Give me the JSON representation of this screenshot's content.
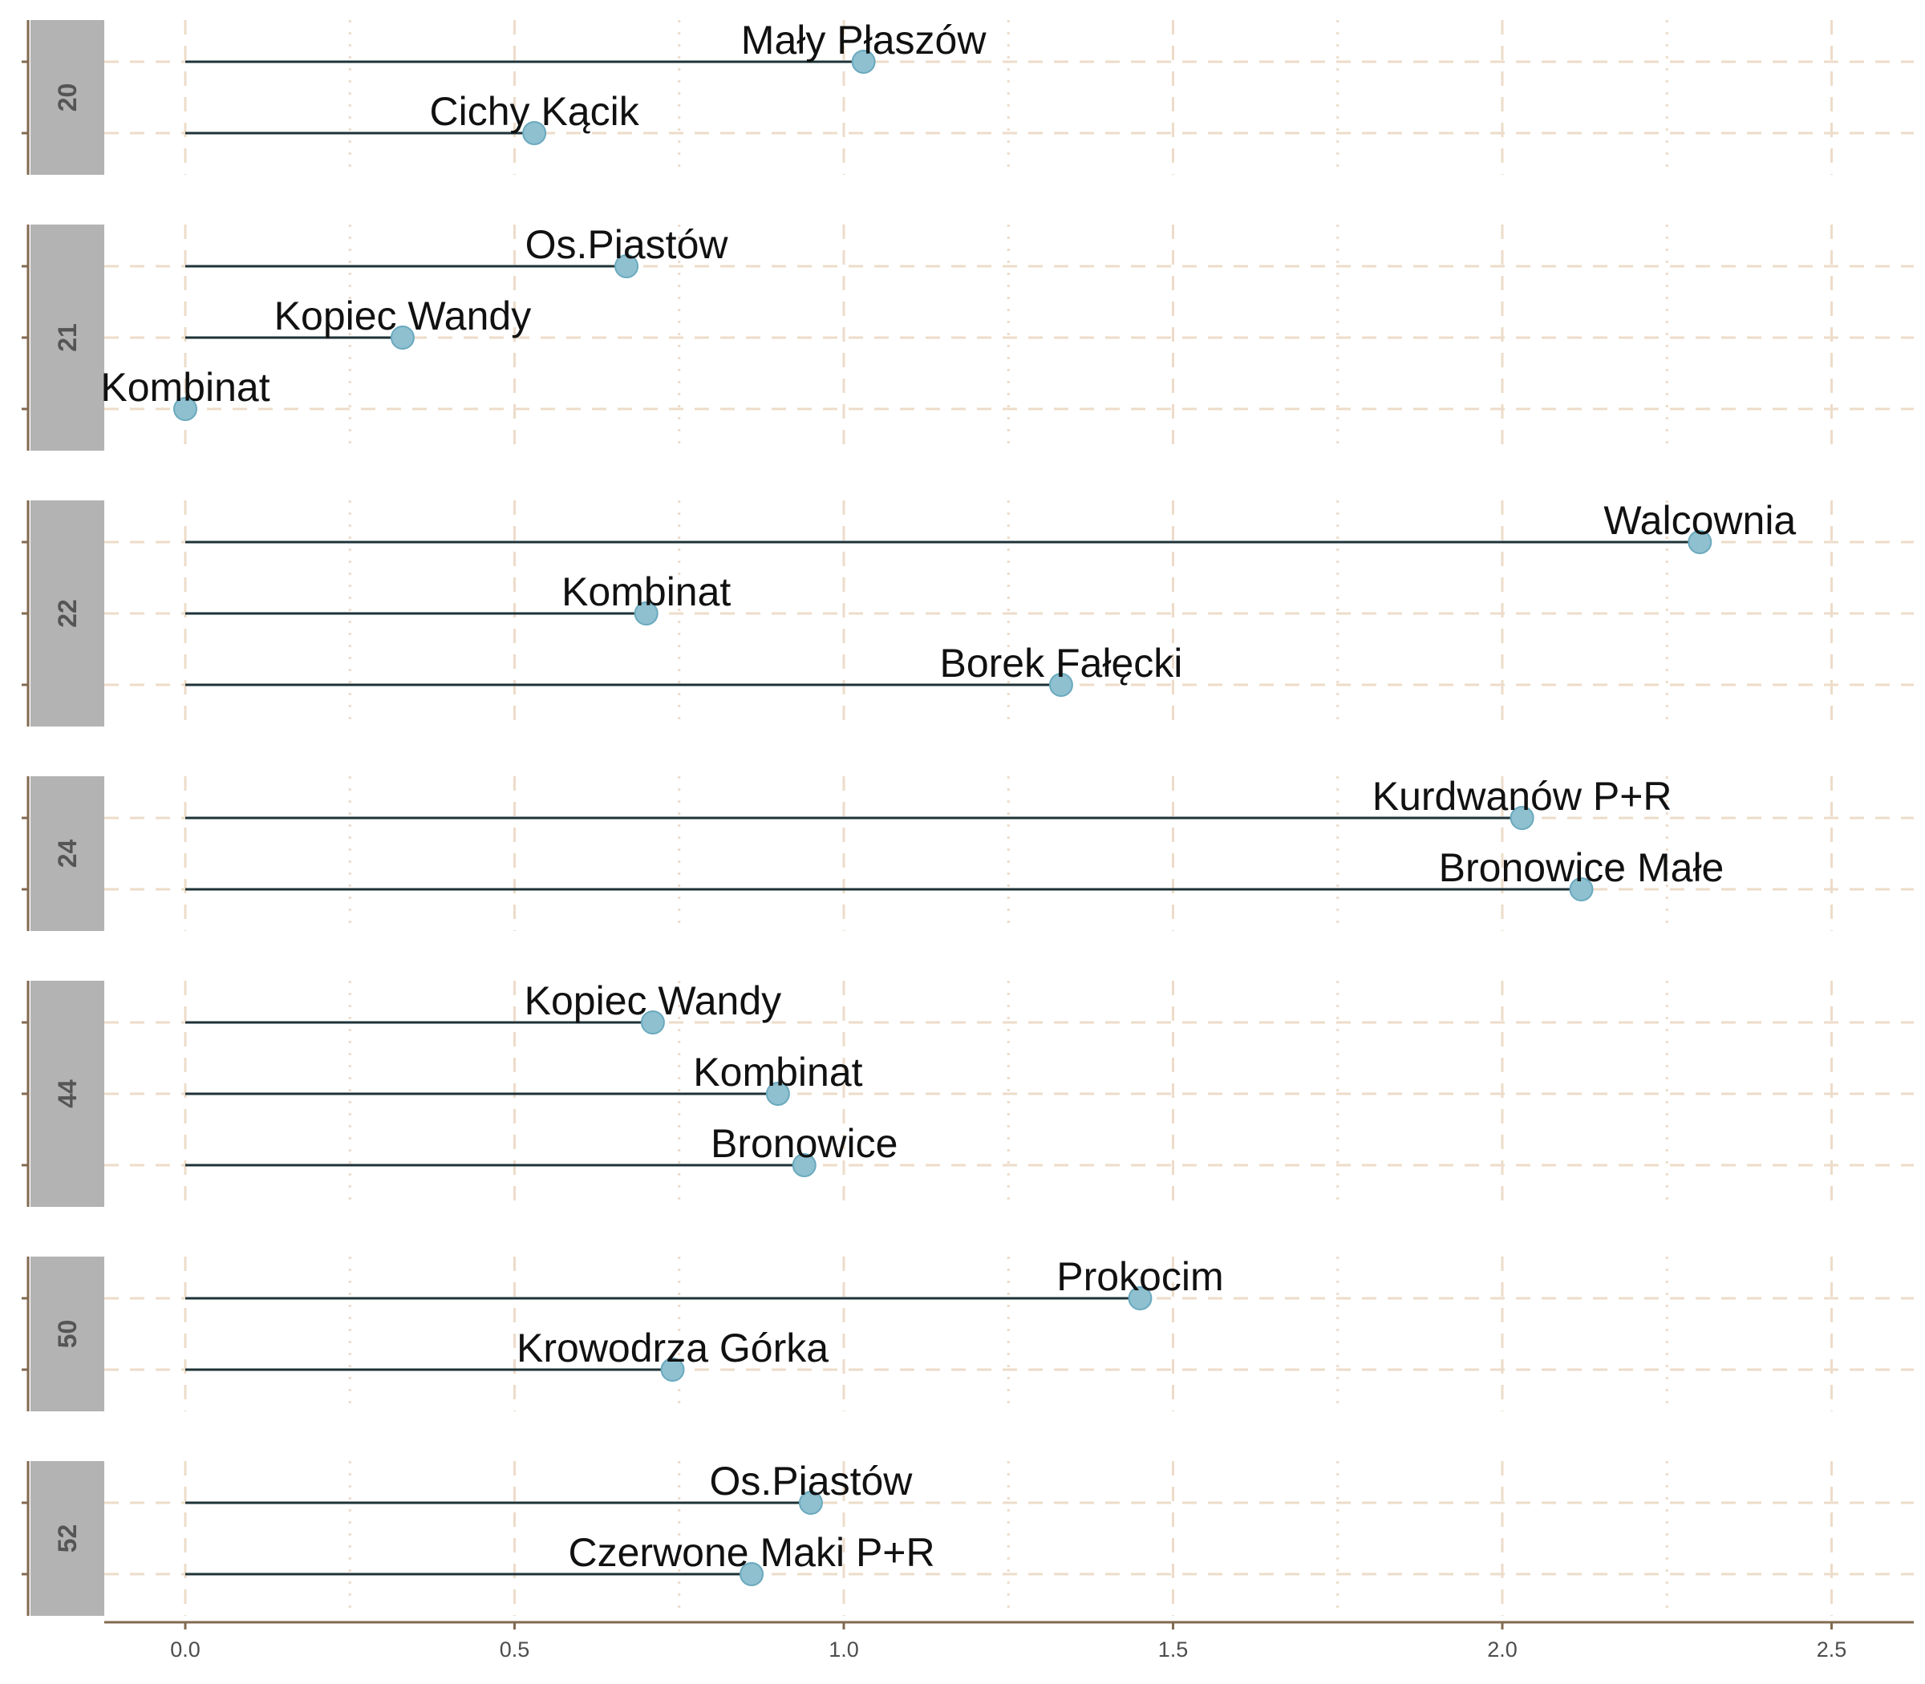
{
  "chart_data": {
    "type": "lollipop",
    "facet_variable": "line",
    "x_ticks": [
      "0.0",
      "0.5",
      "1.0",
      "1.5",
      "2.0",
      "2.5"
    ],
    "xlim": [
      -0.12,
      2.62
    ],
    "grid": true,
    "panels": [
      {
        "label": "20",
        "points": [
          {
            "label": "Mały Płaszów",
            "value": 1.03
          },
          {
            "label": "Cichy Kącik",
            "value": 0.53
          }
        ]
      },
      {
        "label": "21",
        "points": [
          {
            "label": "Os.Piastów",
            "value": 0.67
          },
          {
            "label": "Kopiec Wandy",
            "value": 0.33
          },
          {
            "label": "Kombinat",
            "value": 0.0
          }
        ]
      },
      {
        "label": "22",
        "points": [
          {
            "label": "Walcownia",
            "value": 2.3
          },
          {
            "label": "Kombinat",
            "value": 0.7
          },
          {
            "label": "Borek Fałęcki",
            "value": 1.33
          }
        ]
      },
      {
        "label": "24",
        "points": [
          {
            "label": "Kurdwanów P+R",
            "value": 2.03
          },
          {
            "label": "Bronowice Małe",
            "value": 2.12
          }
        ]
      },
      {
        "label": "44",
        "points": [
          {
            "label": "Kopiec Wandy",
            "value": 0.71
          },
          {
            "label": "Kombinat",
            "value": 0.9
          },
          {
            "label": "Bronowice",
            "value": 0.94
          }
        ]
      },
      {
        "label": "50",
        "points": [
          {
            "label": "Prokocim",
            "value": 1.45
          },
          {
            "label": "Krowodrza Górka",
            "value": 0.74
          }
        ]
      },
      {
        "label": "52",
        "points": [
          {
            "label": "Os.Piastów",
            "value": 0.95
          },
          {
            "label": "Czerwone Maki P+R",
            "value": 0.86
          }
        ]
      }
    ],
    "colors": {
      "point": "#8ec0d0",
      "stem": "#1e3237",
      "strip": "#b3b3b3",
      "grid": "#eddcc9",
      "axis": "#826a50"
    }
  }
}
